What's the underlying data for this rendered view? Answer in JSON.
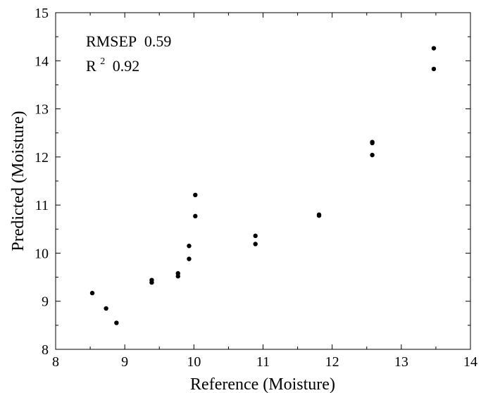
{
  "chart_data": {
    "type": "scatter",
    "title": "",
    "xlabel": "Reference (Moisture)",
    "ylabel": "Predicted (Moisture)",
    "xlim": [
      8,
      14
    ],
    "ylim": [
      8,
      15
    ],
    "xticks": [
      8,
      9,
      10,
      11,
      12,
      13,
      14
    ],
    "yticks": [
      8,
      9,
      10,
      11,
      12,
      13,
      14,
      15
    ],
    "grid": false,
    "legend": "none",
    "point_color": "#000000",
    "annotations": {
      "rmsep_label": "RMSEP",
      "rmsep_value": "0.59",
      "r2_base": "R",
      "r2_exp": "2",
      "r2_value": "0.92"
    },
    "points": [
      {
        "x": 8.53,
        "y": 9.17
      },
      {
        "x": 8.73,
        "y": 8.85
      },
      {
        "x": 8.88,
        "y": 8.55
      },
      {
        "x": 9.39,
        "y": 9.44
      },
      {
        "x": 9.39,
        "y": 9.39
      },
      {
        "x": 9.77,
        "y": 9.58
      },
      {
        "x": 9.77,
        "y": 9.52
      },
      {
        "x": 9.93,
        "y": 10.15
      },
      {
        "x": 9.93,
        "y": 9.88
      },
      {
        "x": 10.02,
        "y": 11.21
      },
      {
        "x": 10.02,
        "y": 10.77
      },
      {
        "x": 10.89,
        "y": 10.36
      },
      {
        "x": 10.89,
        "y": 10.19
      },
      {
        "x": 11.81,
        "y": 10.8
      },
      {
        "x": 11.81,
        "y": 10.78
      },
      {
        "x": 12.58,
        "y": 12.31
      },
      {
        "x": 12.58,
        "y": 12.29
      },
      {
        "x": 12.58,
        "y": 12.04
      },
      {
        "x": 13.47,
        "y": 14.26
      },
      {
        "x": 13.47,
        "y": 13.83
      }
    ]
  }
}
